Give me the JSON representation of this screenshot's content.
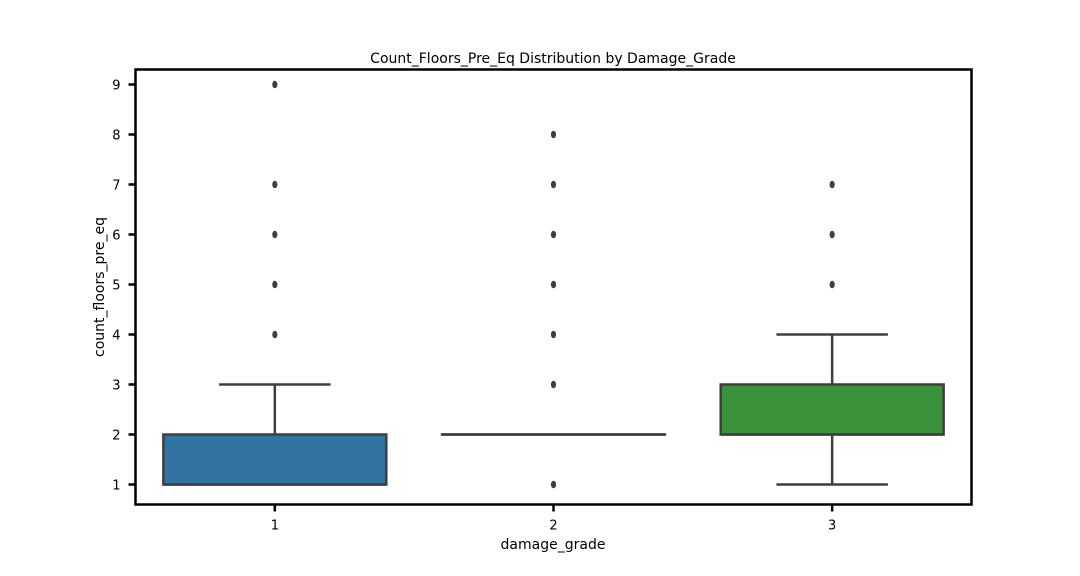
{
  "chart_data": {
    "type": "box",
    "title": "Count_Floors_Pre_Eq Distribution by Damage_Grade",
    "xlabel": "damage_grade",
    "ylabel": "count_floors_pre_eq",
    "ylim": [
      0.6,
      9.3
    ],
    "yticks": [
      1,
      2,
      3,
      4,
      5,
      6,
      7,
      8,
      9
    ],
    "grid": false,
    "legend": "none",
    "categories": [
      "1",
      "2",
      "3"
    ],
    "boxes": [
      {
        "category": "1",
        "color": "#3274a1",
        "whisker_low": 1,
        "q1": 1,
        "median": 1,
        "q3": 2,
        "whisker_high": 3,
        "outliers": [
          4,
          5,
          6,
          7,
          9
        ]
      },
      {
        "category": "2",
        "color": "#e1812c",
        "whisker_low": 2,
        "q1": 2,
        "median": 2,
        "q3": 2,
        "whisker_high": 2,
        "outliers": [
          1,
          3,
          4,
          5,
          6,
          7,
          8
        ]
      },
      {
        "category": "3",
        "color": "#3a923a",
        "whisker_low": 1,
        "q1": 2,
        "median": 2,
        "q3": 3,
        "whisker_high": 4,
        "outliers": [
          5,
          6,
          7
        ]
      }
    ]
  }
}
